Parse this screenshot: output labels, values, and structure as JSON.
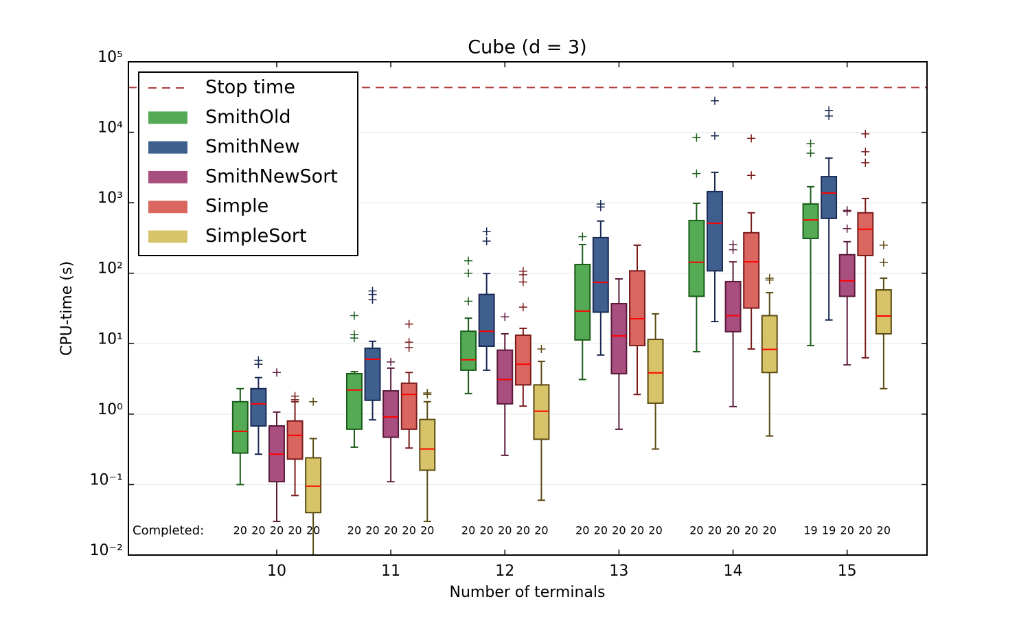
{
  "chart_data": {
    "type": "box",
    "title": "Cube (d = 3)",
    "xlabel": "Number of terminals",
    "ylabel": "CPU-time (s)",
    "log_y": true,
    "grid": true,
    "legend_loc": "upper left",
    "xlim": [
      8.7,
      15.7
    ],
    "ylim": [
      0.01,
      100000
    ],
    "xticks": [
      10,
      11,
      12,
      13,
      14,
      15
    ],
    "yticks": [
      {
        "value": 0.01,
        "label": "10⁻²"
      },
      {
        "value": 0.1,
        "label": "10⁻¹"
      },
      {
        "value": 1,
        "label": "10⁰"
      },
      {
        "value": 10,
        "label": "10¹"
      },
      {
        "value": 100,
        "label": "10²"
      },
      {
        "value": 1000,
        "label": "10³"
      },
      {
        "value": 10000,
        "label": "10⁴"
      },
      {
        "value": 100000,
        "label": "10⁵"
      }
    ],
    "x": [
      10,
      11,
      12,
      13,
      14,
      15
    ],
    "stop_time": {
      "name": "Stop time",
      "value": 43200,
      "color": "#b03a3a"
    },
    "median_color": "#ff0000",
    "completed_label": "Completed:",
    "series": [
      {
        "name": "SmithOld",
        "color": "#55aa55",
        "edgecolor": "#1a5c1a",
        "completed": [
          20,
          20,
          20,
          20,
          20,
          19
        ],
        "boxes": [
          {
            "whislo": 0.1,
            "q1": 0.28,
            "med": 0.57,
            "q3": 1.5,
            "whishi": 2.3,
            "fliers": []
          },
          {
            "whislo": 0.34,
            "q1": 0.61,
            "med": 2.2,
            "q3": 3.75,
            "whishi": 4.0,
            "fliers": [
              25,
              13.5,
              12
            ]
          },
          {
            "whislo": 1.96,
            "q1": 4.2,
            "med": 5.9,
            "q3": 15,
            "whishi": 23,
            "fliers": [
              40,
              100,
              150
            ]
          },
          {
            "whislo": 3.1,
            "q1": 11.3,
            "med": 29,
            "q3": 133,
            "whishi": 255,
            "fliers": [
              330
            ]
          },
          {
            "whislo": 7.7,
            "q1": 47,
            "med": 143,
            "q3": 560,
            "whishi": 980,
            "fliers": [
              2600,
              8400
            ]
          },
          {
            "whislo": 9.4,
            "q1": 312,
            "med": 570,
            "q3": 960,
            "whishi": 1690,
            "fliers": [
              5050,
              6900
            ]
          }
        ]
      },
      {
        "name": "SmithNew",
        "color": "#3f5f8f",
        "edgecolor": "#1a2a55",
        "completed": [
          20,
          20,
          20,
          20,
          20,
          19
        ],
        "boxes": [
          {
            "whislo": 0.27,
            "q1": 0.68,
            "med": 1.4,
            "q3": 2.3,
            "whishi": 3.3,
            "fliers": [
              5.8,
              5.1
            ]
          },
          {
            "whislo": 0.83,
            "q1": 1.57,
            "med": 6.0,
            "q3": 8.6,
            "whishi": 10.8,
            "fliers": [
              56,
              50,
              42
            ]
          },
          {
            "whislo": 4.2,
            "q1": 9.2,
            "med": 15,
            "q3": 50,
            "whishi": 99,
            "fliers": [
              285,
              390
            ]
          },
          {
            "whislo": 6.9,
            "q1": 28,
            "med": 74,
            "q3": 320,
            "whishi": 550,
            "fliers": [
              960,
              870
            ]
          },
          {
            "whislo": 20.6,
            "q1": 108,
            "med": 510,
            "q3": 1440,
            "whishi": 2700,
            "fliers": [
              8900,
              28000
            ]
          },
          {
            "whislo": 21.7,
            "q1": 600,
            "med": 1370,
            "q3": 2350,
            "whishi": 4300,
            "fliers": [
              17000,
              20400
            ]
          }
        ]
      },
      {
        "name": "SmithNewSort",
        "color": "#a94f7f",
        "edgecolor": "#5a1a3a",
        "completed": [
          20,
          20,
          20,
          20,
          20,
          20
        ],
        "boxes": [
          {
            "whislo": 0.03,
            "q1": 0.11,
            "med": 0.27,
            "q3": 0.68,
            "whishi": 1.07,
            "fliers": [
              3.9
            ]
          },
          {
            "whislo": 0.11,
            "q1": 0.47,
            "med": 0.91,
            "q3": 2.14,
            "whishi": 4.5,
            "fliers": [
              5.5
            ]
          },
          {
            "whislo": 0.26,
            "q1": 1.4,
            "med": 3.1,
            "q3": 8.1,
            "whishi": 13.8,
            "fliers": [
              24
            ]
          },
          {
            "whislo": 0.61,
            "q1": 3.75,
            "med": 12.9,
            "q3": 37,
            "whishi": 83,
            "fliers": []
          },
          {
            "whislo": 1.28,
            "q1": 14.8,
            "med": 25,
            "q3": 76,
            "whishi": 145,
            "fliers": [
              255,
              215
            ]
          },
          {
            "whislo": 5.0,
            "q1": 47,
            "med": 78,
            "q3": 183,
            "whishi": 280,
            "fliers": [
              430,
              750,
              780
            ]
          }
        ]
      },
      {
        "name": "Simple",
        "color": "#d9675f",
        "edgecolor": "#7a1a1a",
        "completed": [
          20,
          20,
          20,
          20,
          20,
          20
        ],
        "boxes": [
          {
            "whislo": 0.07,
            "q1": 0.23,
            "med": 0.5,
            "q3": 0.8,
            "whishi": 1.5,
            "fliers": [
              1.8,
              1.6
            ]
          },
          {
            "whislo": 0.33,
            "q1": 0.61,
            "med": 1.9,
            "q3": 2.75,
            "whishi": 3.9,
            "fliers": [
              19,
              10.5,
              8.8
            ]
          },
          {
            "whislo": 1.3,
            "q1": 2.6,
            "med": 5.1,
            "q3": 13.2,
            "whishi": 16.5,
            "fliers": [
              33,
              75,
              95,
              107
            ]
          },
          {
            "whislo": 1.9,
            "q1": 9.4,
            "med": 22.6,
            "q3": 108,
            "whishi": 250,
            "fliers": []
          },
          {
            "whislo": 8.4,
            "q1": 32,
            "med": 145,
            "q3": 375,
            "whishi": 720,
            "fliers": [
              2450,
              8200
            ]
          },
          {
            "whislo": 6.3,
            "q1": 178,
            "med": 420,
            "q3": 720,
            "whishi": 1150,
            "fliers": [
              3700,
              5300,
              9500
            ]
          }
        ]
      },
      {
        "name": "SimpleSort",
        "color": "#d7c46a",
        "edgecolor": "#5a4a10",
        "completed": [
          20,
          20,
          20,
          20,
          20,
          20
        ],
        "boxes": [
          {
            "whislo": 0.01,
            "q1": 0.04,
            "med": 0.095,
            "q3": 0.24,
            "whishi": 0.45,
            "fliers": [
              1.5
            ]
          },
          {
            "whislo": 0.03,
            "q1": 0.16,
            "med": 0.32,
            "q3": 0.84,
            "whishi": 1.5,
            "fliers": [
              2.0,
              1.9
            ]
          },
          {
            "whislo": 0.06,
            "q1": 0.44,
            "med": 1.1,
            "q3": 2.6,
            "whishi": 5.6,
            "fliers": [
              8.4
            ]
          },
          {
            "whislo": 0.32,
            "q1": 1.43,
            "med": 3.85,
            "q3": 11.5,
            "whishi": 26.5,
            "fliers": []
          },
          {
            "whislo": 0.49,
            "q1": 3.9,
            "med": 8.3,
            "q3": 25,
            "whishi": 53,
            "fliers": [
              80,
              85
            ]
          },
          {
            "whislo": 2.3,
            "q1": 13.8,
            "med": 24.7,
            "q3": 58,
            "whishi": 85,
            "fliers": [
              142,
              250
            ]
          }
        ]
      }
    ]
  }
}
